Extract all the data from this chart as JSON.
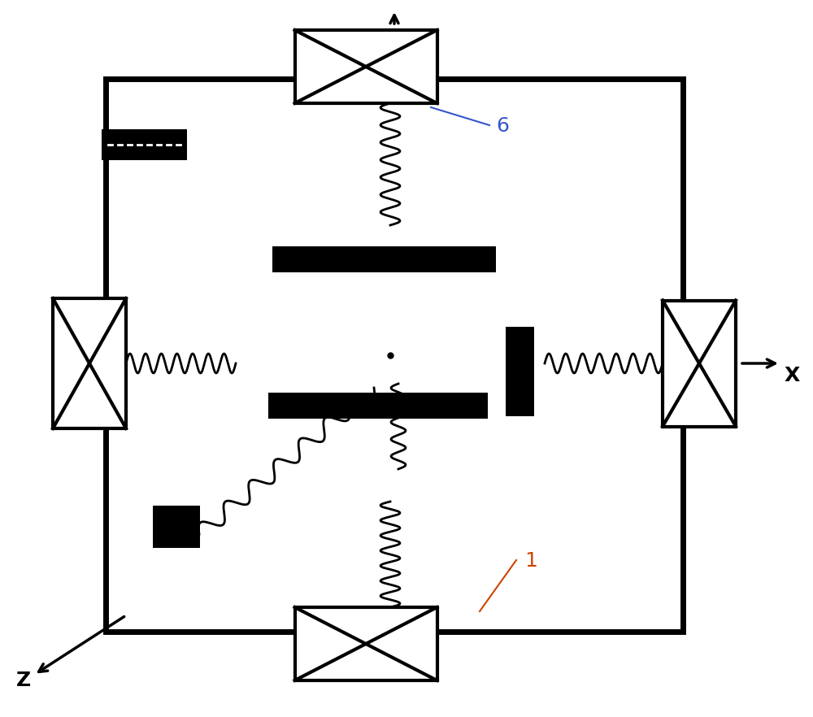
{
  "bg_color": "#ffffff",
  "line_color": "#000000",
  "label_color_1": "#cc4400",
  "label_color_6": "#3355cc",
  "figsize": [
    10.0,
    8.82
  ],
  "dpi": 100,
  "label_1": "1",
  "label_6": "6",
  "axis_x_label": "X",
  "axis_z_label": "Z"
}
